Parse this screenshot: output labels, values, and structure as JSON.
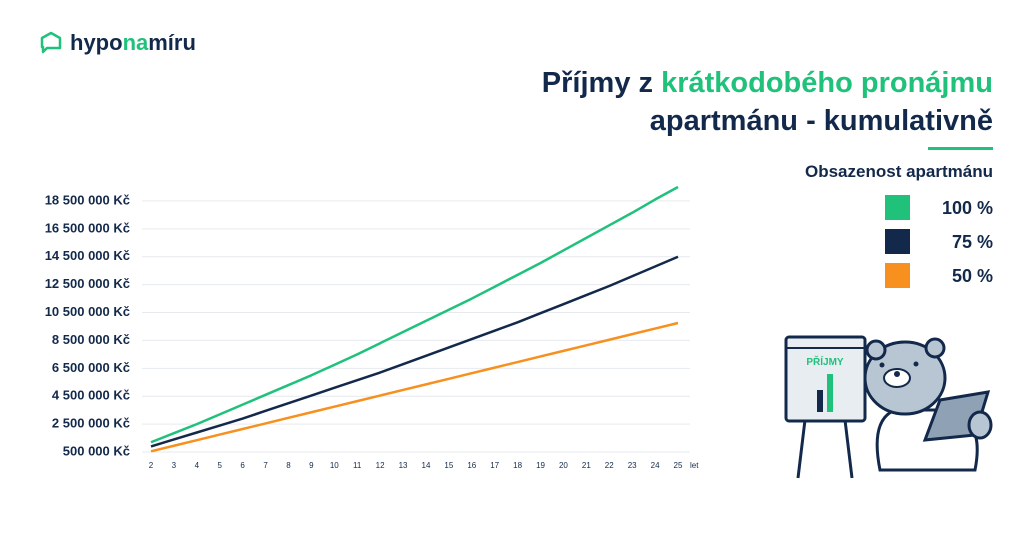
{
  "brand": {
    "start": "hypo",
    "highlight": "na",
    "end": "míru"
  },
  "illustration_label": "PŘÍJMY",
  "chart_data": {
    "type": "line",
    "title": {
      "line1_start": "Příjmy z",
      "line1_highlight": "krátkodobého pronájmu",
      "line2": "apartmánu - kumulativně"
    },
    "legend_title": "Obsazenost apartmánu",
    "legend": "top-right",
    "x_unit": "let",
    "x": [
      2,
      3,
      4,
      5,
      6,
      7,
      8,
      9,
      10,
      11,
      12,
      13,
      14,
      15,
      16,
      17,
      18,
      19,
      20,
      21,
      22,
      23,
      24,
      25
    ],
    "xlim": [
      2,
      25
    ],
    "xticks": [
      2,
      3,
      4,
      5,
      6,
      7,
      8,
      9,
      10,
      11,
      12,
      13,
      14,
      15,
      16,
      17,
      18,
      19,
      20,
      21,
      22,
      23,
      24,
      25
    ],
    "ylim": [
      0,
      20000000
    ],
    "yticks": [
      {
        "value": 500000,
        "label": "500 000 Kč"
      },
      {
        "value": 2500000,
        "label": "2 500 000 Kč"
      },
      {
        "value": 4500000,
        "label": "4 500 000 Kč"
      },
      {
        "value": 6500000,
        "label": "6 500 000 Kč"
      },
      {
        "value": 8500000,
        "label": "8 500 000 Kč"
      },
      {
        "value": 10500000,
        "label": "10 500 000 Kč"
      },
      {
        "value": 12500000,
        "label": "12 500 000 Kč"
      },
      {
        "value": 14500000,
        "label": "14 500 000 Kč"
      },
      {
        "value": 16500000,
        "label": "16 500 000 Kč"
      },
      {
        "value": 18500000,
        "label": "18 500 000 Kč"
      }
    ],
    "grid": true,
    "series": [
      {
        "name": "100 %",
        "color": "#1fc17b",
        "values": [
          1200000,
          1850000,
          2500000,
          3200000,
          3900000,
          4600000,
          5300000,
          6000000,
          6750000,
          7500000,
          8300000,
          9100000,
          9900000,
          10700000,
          11500000,
          12350000,
          13200000,
          14050000,
          14950000,
          15850000,
          16750000,
          17650000,
          18600000,
          19500000
        ]
      },
      {
        "name": "75 %",
        "color": "#13294b",
        "values": [
          900000,
          1400000,
          1900000,
          2400000,
          2900000,
          3450000,
          4000000,
          4550000,
          5100000,
          5650000,
          6200000,
          6800000,
          7400000,
          8000000,
          8600000,
          9200000,
          9800000,
          10450000,
          11100000,
          11750000,
          12400000,
          13100000,
          13800000,
          14500000
        ]
      },
      {
        "name": "50 %",
        "color": "#f7901e",
        "values": [
          550000,
          950000,
          1350000,
          1750000,
          2150000,
          2550000,
          2950000,
          3350000,
          3750000,
          4150000,
          4550000,
          4950000,
          5350000,
          5750000,
          6150000,
          6550000,
          6950000,
          7350000,
          7750000,
          8150000,
          8550000,
          8950000,
          9350000,
          9750000
        ]
      }
    ]
  }
}
